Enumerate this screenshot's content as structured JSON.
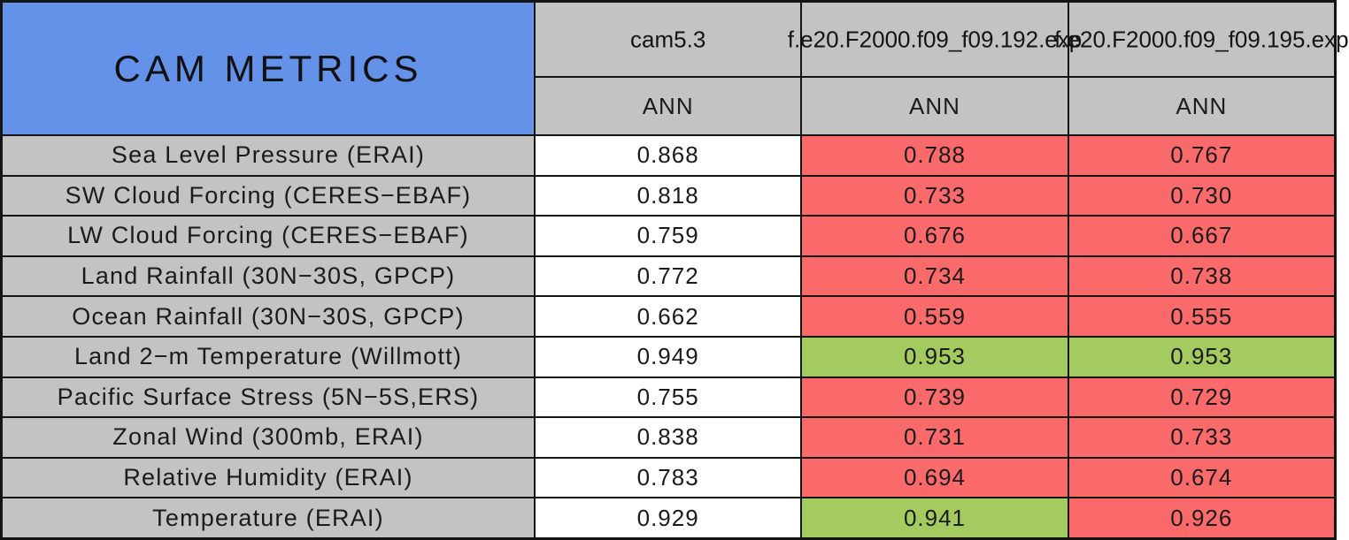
{
  "palette": {
    "title_blue": "#6392E8",
    "header_gray": "#C3C3C3",
    "value_neutral": "#FFFFFF",
    "value_worse": "#FA6A6A",
    "value_better": "#A3CB60",
    "grid_line": "#141414"
  },
  "chart_data": {
    "type": "table",
    "title": "CAM METRICS",
    "column_headers": [
      "cam5.3",
      "f.e20.F2000.f09_f09.192.exp",
      "f.e20.F2000.f09_f09.195.exp"
    ],
    "sub_headers": [
      "ANN",
      "ANN",
      "ANN"
    ],
    "legend_note": "statuses: neutral = baseline (white), worse = red, better = green",
    "rows": [
      {
        "label": "Sea Level Pressure (ERAI)",
        "values": [
          "0.868",
          "0.788",
          "0.767"
        ],
        "statuses": [
          "neutral",
          "worse",
          "worse"
        ]
      },
      {
        "label": "SW Cloud Forcing (CERES−EBAF)",
        "values": [
          "0.818",
          "0.733",
          "0.730"
        ],
        "statuses": [
          "neutral",
          "worse",
          "worse"
        ]
      },
      {
        "label": "LW Cloud Forcing (CERES−EBAF)",
        "values": [
          "0.759",
          "0.676",
          "0.667"
        ],
        "statuses": [
          "neutral",
          "worse",
          "worse"
        ]
      },
      {
        "label": "Land Rainfall (30N−30S, GPCP)",
        "values": [
          "0.772",
          "0.734",
          "0.738"
        ],
        "statuses": [
          "neutral",
          "worse",
          "worse"
        ]
      },
      {
        "label": "Ocean Rainfall (30N−30S, GPCP)",
        "values": [
          "0.662",
          "0.559",
          "0.555"
        ],
        "statuses": [
          "neutral",
          "worse",
          "worse"
        ]
      },
      {
        "label": "Land 2−m Temperature (Willmott)",
        "values": [
          "0.949",
          "0.953",
          "0.953"
        ],
        "statuses": [
          "neutral",
          "better",
          "better"
        ]
      },
      {
        "label": "Pacific Surface Stress (5N−5S,ERS)",
        "values": [
          "0.755",
          "0.739",
          "0.729"
        ],
        "statuses": [
          "neutral",
          "worse",
          "worse"
        ]
      },
      {
        "label": "Zonal Wind (300mb, ERAI)",
        "values": [
          "0.838",
          "0.731",
          "0.733"
        ],
        "statuses": [
          "neutral",
          "worse",
          "worse"
        ]
      },
      {
        "label": "Relative Humidity (ERAI)",
        "values": [
          "0.783",
          "0.694",
          "0.674"
        ],
        "statuses": [
          "neutral",
          "worse",
          "worse"
        ]
      },
      {
        "label": "Temperature (ERAI)",
        "values": [
          "0.929",
          "0.941",
          "0.926"
        ],
        "statuses": [
          "neutral",
          "better",
          "worse"
        ]
      }
    ]
  }
}
